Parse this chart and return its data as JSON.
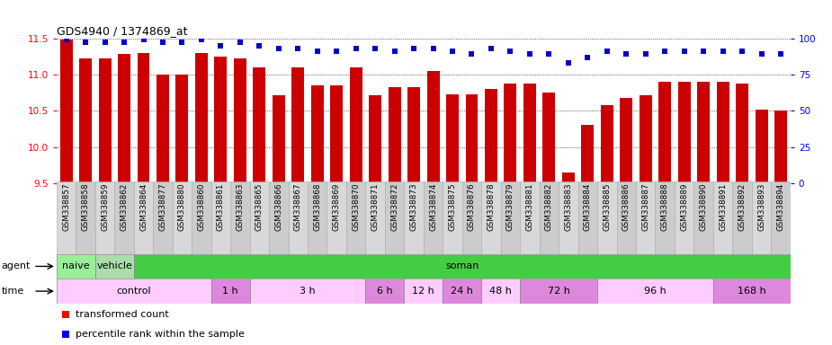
{
  "title": "GDS4940 / 1374869_at",
  "samples": [
    "GSM338857",
    "GSM338858",
    "GSM338859",
    "GSM338862",
    "GSM338864",
    "GSM338877",
    "GSM338880",
    "GSM338860",
    "GSM338861",
    "GSM338863",
    "GSM338865",
    "GSM338866",
    "GSM338867",
    "GSM338868",
    "GSM338869",
    "GSM338870",
    "GSM338871",
    "GSM338872",
    "GSM338873",
    "GSM338874",
    "GSM338875",
    "GSM338876",
    "GSM338878",
    "GSM338879",
    "GSM338881",
    "GSM338882",
    "GSM338883",
    "GSM338884",
    "GSM338885",
    "GSM338886",
    "GSM338887",
    "GSM338888",
    "GSM338889",
    "GSM338890",
    "GSM338891",
    "GSM338892",
    "GSM338893",
    "GSM338894"
  ],
  "bar_values": [
    11.48,
    11.22,
    11.22,
    11.28,
    11.3,
    11.0,
    11.0,
    11.3,
    11.25,
    11.22,
    11.1,
    10.72,
    11.1,
    10.85,
    10.85,
    11.1,
    10.72,
    10.82,
    10.82,
    11.05,
    10.73,
    10.73,
    10.8,
    10.88,
    10.88,
    10.75,
    9.65,
    10.3,
    10.58,
    10.68,
    10.72,
    10.9,
    10.9,
    10.9,
    10.9,
    10.88,
    10.52,
    10.5
  ],
  "blue_values": [
    99,
    97,
    97,
    97,
    99,
    97,
    97,
    99,
    95,
    97,
    95,
    93,
    93,
    91,
    91,
    93,
    93,
    91,
    93,
    93,
    91,
    89,
    93,
    91,
    89,
    89,
    83,
    87,
    91,
    89,
    89,
    91,
    91,
    91,
    91,
    91,
    89,
    89
  ],
  "bar_color": "#cc0000",
  "dot_color": "#0000cc",
  "ylim_left": [
    9.5,
    11.5
  ],
  "ylim_right": [
    0,
    100
  ],
  "yticks_left": [
    9.5,
    10.0,
    10.5,
    11.0,
    11.5
  ],
  "yticks_right": [
    0,
    25,
    50,
    75,
    100
  ],
  "agent_boundaries": [
    [
      "naive",
      0,
      2,
      "#99ee99"
    ],
    [
      "vehicle",
      2,
      4,
      "#aaddaa"
    ],
    [
      "soman",
      4,
      38,
      "#44cc44"
    ]
  ],
  "time_boundaries": [
    [
      "control",
      0,
      8,
      "#ffccff"
    ],
    [
      "1 h",
      8,
      10,
      "#dd88dd"
    ],
    [
      "3 h",
      10,
      16,
      "#ffccff"
    ],
    [
      "6 h",
      16,
      18,
      "#dd88dd"
    ],
    [
      "12 h",
      18,
      20,
      "#ffccff"
    ],
    [
      "24 h",
      20,
      22,
      "#dd88dd"
    ],
    [
      "48 h",
      22,
      24,
      "#ffccff"
    ],
    [
      "72 h",
      24,
      28,
      "#dd88dd"
    ],
    [
      "96 h",
      28,
      34,
      "#ffccff"
    ],
    [
      "168 h",
      34,
      38,
      "#dd88dd"
    ]
  ]
}
